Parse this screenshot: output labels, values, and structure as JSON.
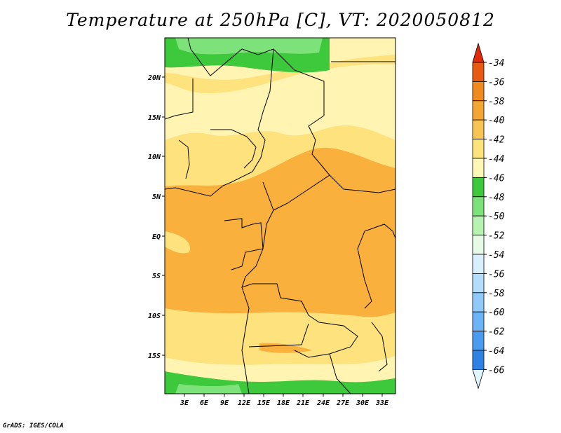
{
  "title": "Temperature at 250hPa [C], VT: 2020050812",
  "credit": "GrADS: IGES/COLA",
  "map": {
    "lat_ticks": [
      "20N",
      "15N",
      "10N",
      "5N",
      "EQ",
      "5S",
      "10S",
      "15S"
    ],
    "lon_ticks": [
      "3E",
      "6E",
      "9E",
      "12E",
      "15E",
      "18E",
      "21E",
      "24E",
      "27E",
      "30E",
      "33E"
    ]
  },
  "colorbar": {
    "labels": [
      "-34",
      "-36",
      "-38",
      "-40",
      "-42",
      "-44",
      "-46",
      "-48",
      "-50",
      "-52",
      "-54",
      "-56",
      "-58",
      "-60",
      "-62",
      "-64",
      "-66"
    ],
    "colors": [
      "#e0f5ff",
      "#d8f5ff"
    ],
    "segment_colors": [
      "#1e1e6e",
      "#1244a8",
      "#1a64c8",
      "#2e82e4",
      "#4a9cf0",
      "#6cb4f5",
      "#8fcaf8",
      "#b4ddfb",
      "#d8f0fd",
      "#e6fbe6",
      "#b6f2b0",
      "#7ee27a",
      "#3ec83c",
      "#fff7b4",
      "#fce37a",
      "#f8c454",
      "#f4a634",
      "#f08a1e",
      "#e85a12",
      "#e02a0a"
    ]
  }
}
